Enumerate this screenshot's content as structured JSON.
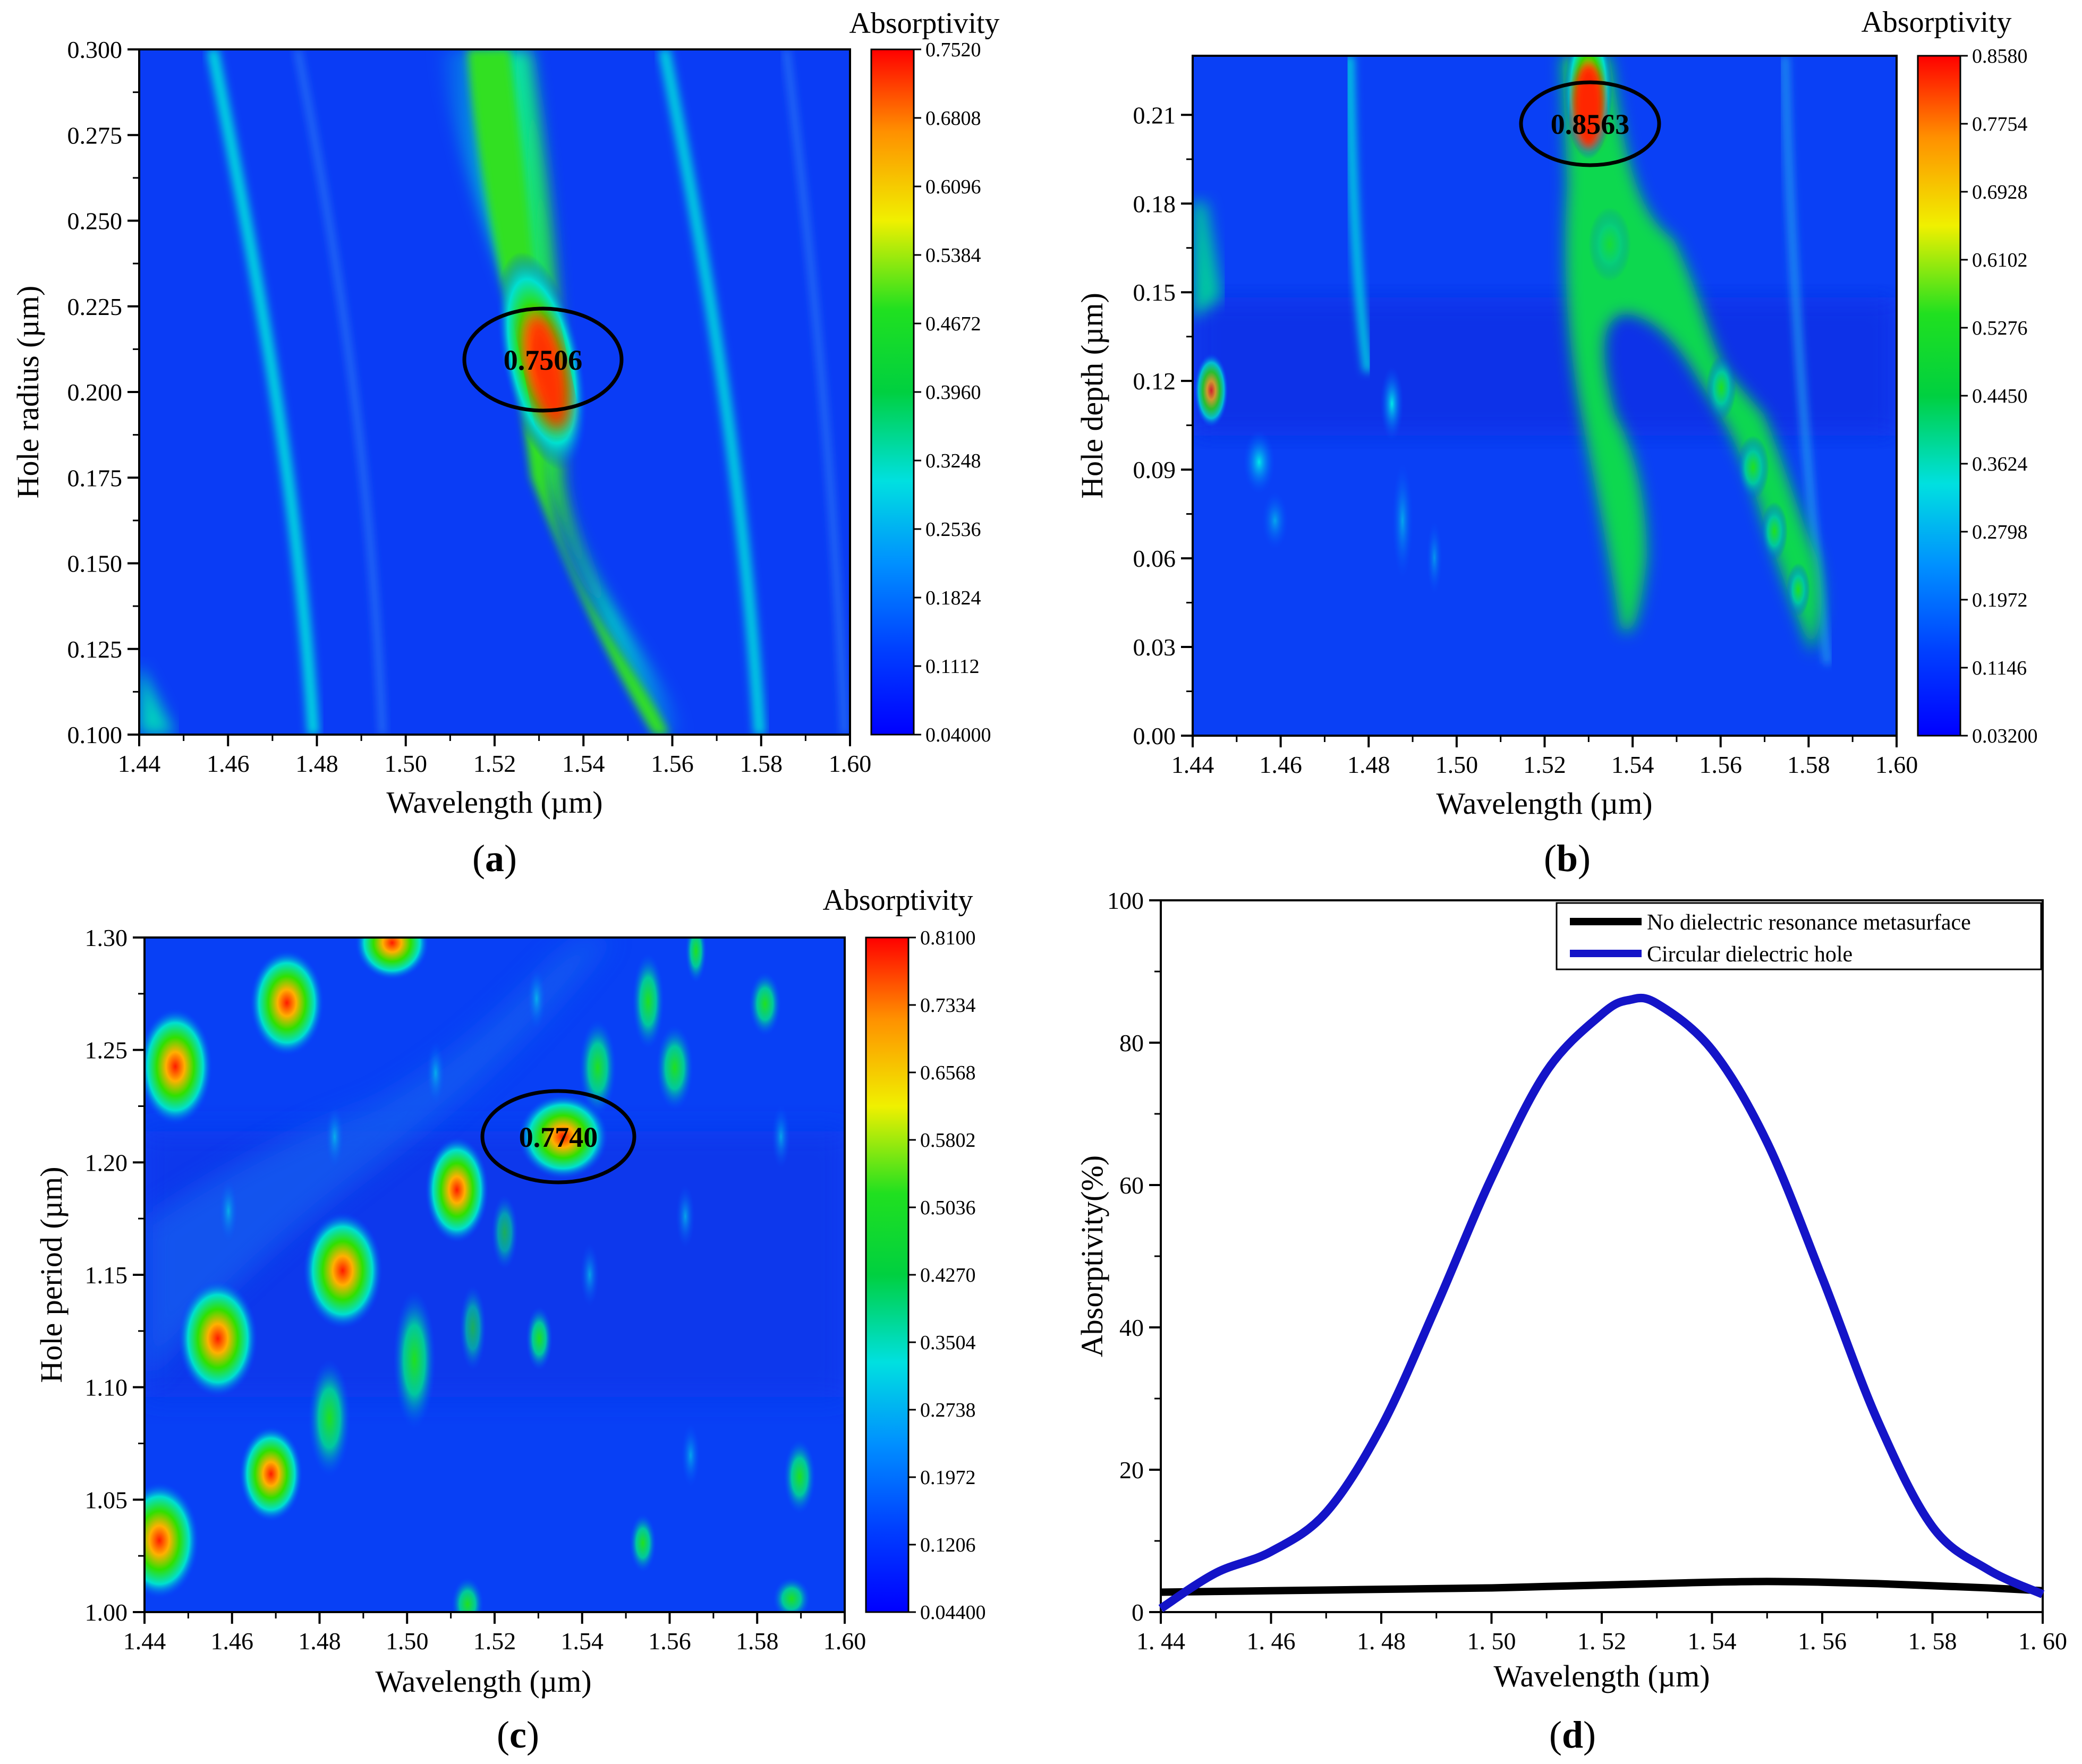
{
  "panels": [
    {
      "label_open": "(",
      "label_letter": "a",
      "label_close": ")",
      "colorbar_label": "Absorptivity",
      "chart_data": {
        "type": "heatmap",
        "xlabel": "Wavelength (µm)",
        "ylabel": "Hole radius (µm)",
        "xlim": [
          1.44,
          1.6
        ],
        "ylim": [
          0.1,
          0.3
        ],
        "x_ticks": [
          "1.44",
          "1.46",
          "1.48",
          "1.50",
          "1.52",
          "1.54",
          "1.56",
          "1.58",
          "1.60"
        ],
        "y_ticks": [
          "0.100",
          "0.125",
          "0.150",
          "0.175",
          "0.200",
          "0.225",
          "0.250",
          "0.275",
          "0.300"
        ],
        "colorbar_ticks": [
          "0.04000",
          "0.1112",
          "0.1824",
          "0.2536",
          "0.3248",
          "0.3960",
          "0.4672",
          "0.5384",
          "0.6096",
          "0.6808",
          "0.7520"
        ],
        "zlim": [
          0.04,
          0.752
        ],
        "annotation": {
          "text": "0.7506",
          "x": 1.5315,
          "y": 0.21
        }
      }
    },
    {
      "label_open": "(",
      "label_letter": "b",
      "label_close": ")",
      "colorbar_label": "Absorptivity",
      "chart_data": {
        "type": "heatmap",
        "xlabel": "Wavelength (µm)",
        "ylabel": "Hole depth (µm)",
        "xlim": [
          1.44,
          1.6
        ],
        "ylim": [
          0.0,
          0.23
        ],
        "x_ticks": [
          "1.44",
          "1.46",
          "1.48",
          "1.50",
          "1.52",
          "1.54",
          "1.56",
          "1.58",
          "1.60"
        ],
        "y_ticks": [
          "0.00",
          "0.03",
          "0.06",
          "0.09",
          "0.12",
          "0.15",
          "0.18",
          "0.21"
        ],
        "colorbar_ticks": [
          "0.03200",
          "0.1146",
          "0.1972",
          "0.2798",
          "0.3624",
          "0.4450",
          "0.5276",
          "0.6102",
          "0.6928",
          "0.7754",
          "0.8580"
        ],
        "zlim": [
          0.032,
          0.858
        ],
        "annotation": {
          "text": "0.8563",
          "x": 1.53,
          "y": 0.207
        }
      }
    },
    {
      "label_open": "(",
      "label_letter": "c",
      "label_close": ")",
      "colorbar_label": "Absorptivity",
      "chart_data": {
        "type": "heatmap",
        "xlabel": "Wavelength (µm)",
        "ylabel": "Hole period (µm)",
        "xlim": [
          1.44,
          1.6
        ],
        "ylim": [
          1.0,
          1.3
        ],
        "x_ticks": [
          "1.44",
          "1.46",
          "1.48",
          "1.50",
          "1.52",
          "1.54",
          "1.56",
          "1.58",
          "1.60"
        ],
        "y_ticks": [
          "1.00",
          "1.05",
          "1.10",
          "1.15",
          "1.20",
          "1.25",
          "1.30"
        ],
        "colorbar_ticks": [
          "0.04400",
          "0.1206",
          "0.1972",
          "0.2738",
          "0.3504",
          "0.4270",
          "0.5036",
          "0.5802",
          "0.6568",
          "0.7334",
          "0.8100"
        ],
        "zlim": [
          0.044,
          0.81
        ],
        "annotation": {
          "text": "0.7740",
          "x": 1.535,
          "y": 1.21
        }
      }
    },
    {
      "label_open": "(",
      "label_letter": "d",
      "label_close": ")",
      "chart_data": {
        "type": "line",
        "xlabel": "Wavelength (µm)",
        "ylabel": "Absorptivity(%)",
        "xlim": [
          1.44,
          1.6
        ],
        "ylim": [
          0,
          100
        ],
        "x_ticks": [
          "1. 44",
          "1. 46",
          "1. 48",
          "1. 50",
          "1. 52",
          "1. 54",
          "1. 56",
          "1. 58",
          "1. 60"
        ],
        "y_ticks": [
          "0",
          "20",
          "40",
          "60",
          "80",
          "100"
        ],
        "legend_position": "top-right",
        "x": [
          1.44,
          1.45,
          1.46,
          1.47,
          1.48,
          1.49,
          1.5,
          1.51,
          1.52,
          1.525,
          1.53,
          1.54,
          1.55,
          1.56,
          1.57,
          1.58,
          1.59,
          1.6
        ],
        "series": [
          {
            "name": "No dielectric resonance metasurface",
            "color": "#000000",
            "values": [
              2.8,
              2.9,
              3.0,
              3.1,
              3.2,
              3.3,
              3.4,
              3.6,
              3.8,
              3.9,
              4.0,
              4.2,
              4.3,
              4.2,
              4.0,
              3.7,
              3.4,
              3.0
            ]
          },
          {
            "name": "Circular dielectric hole",
            "color": "#1414c8",
            "values": [
              0.5,
              5.5,
              8.5,
              14,
              26,
              43,
              61,
              76,
              84,
              86,
              85.5,
              79,
              66,
              47,
              27,
              12,
              6,
              2.5
            ]
          }
        ]
      }
    }
  ]
}
